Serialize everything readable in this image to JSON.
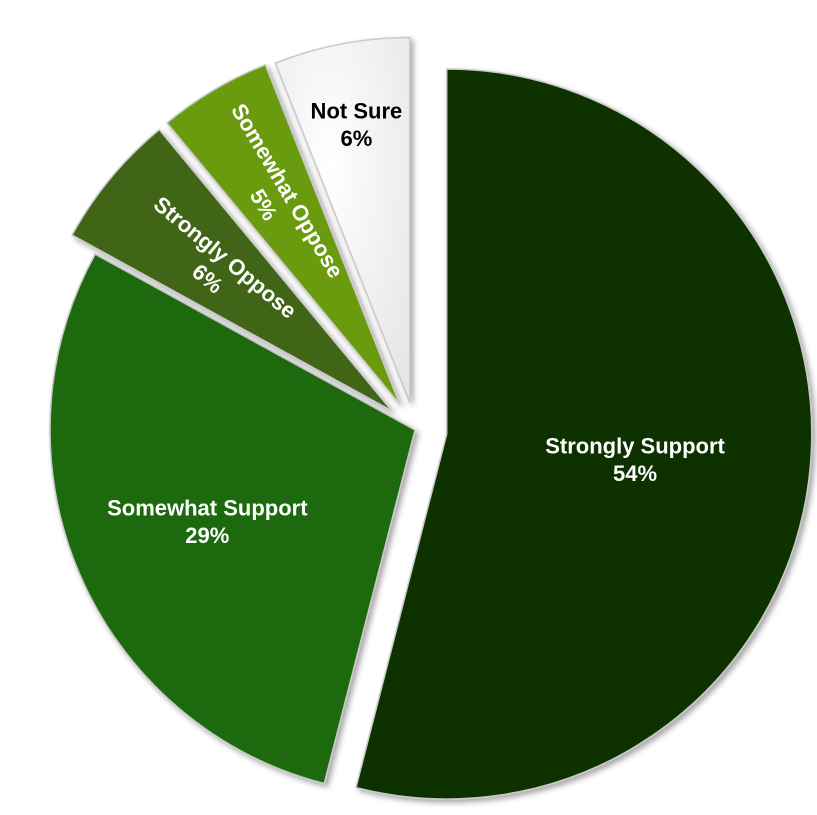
{
  "chart_data": {
    "type": "pie",
    "title": "",
    "exploded": true,
    "start_angle_deg": 0,
    "direction": "clockwise",
    "slices": [
      {
        "name": "Strongly Support",
        "value": 54,
        "value_label": "54%",
        "color": "#0a3200",
        "text_color": "#ffffff",
        "label_orientation": "horizontal"
      },
      {
        "name": "Somewhat Support",
        "value": 29,
        "value_label": "29%",
        "color": "#1f6b08",
        "text_color": "#ffffff",
        "label_orientation": "horizontal"
      },
      {
        "name": "Strongly Oppose",
        "value": 6,
        "value_label": "6%",
        "color": "#3f6515",
        "text_color": "#ffffff",
        "label_orientation": "radial"
      },
      {
        "name": "Somewhat Oppose",
        "value": 5,
        "value_label": "5%",
        "color": "#6b9a10",
        "text_color": "#ffffff",
        "label_orientation": "radial"
      },
      {
        "name": "Not Sure",
        "value": 6,
        "value_label": "6%",
        "color": "#ffffff",
        "text_color": "#000000",
        "label_orientation": "horizontal"
      }
    ]
  }
}
